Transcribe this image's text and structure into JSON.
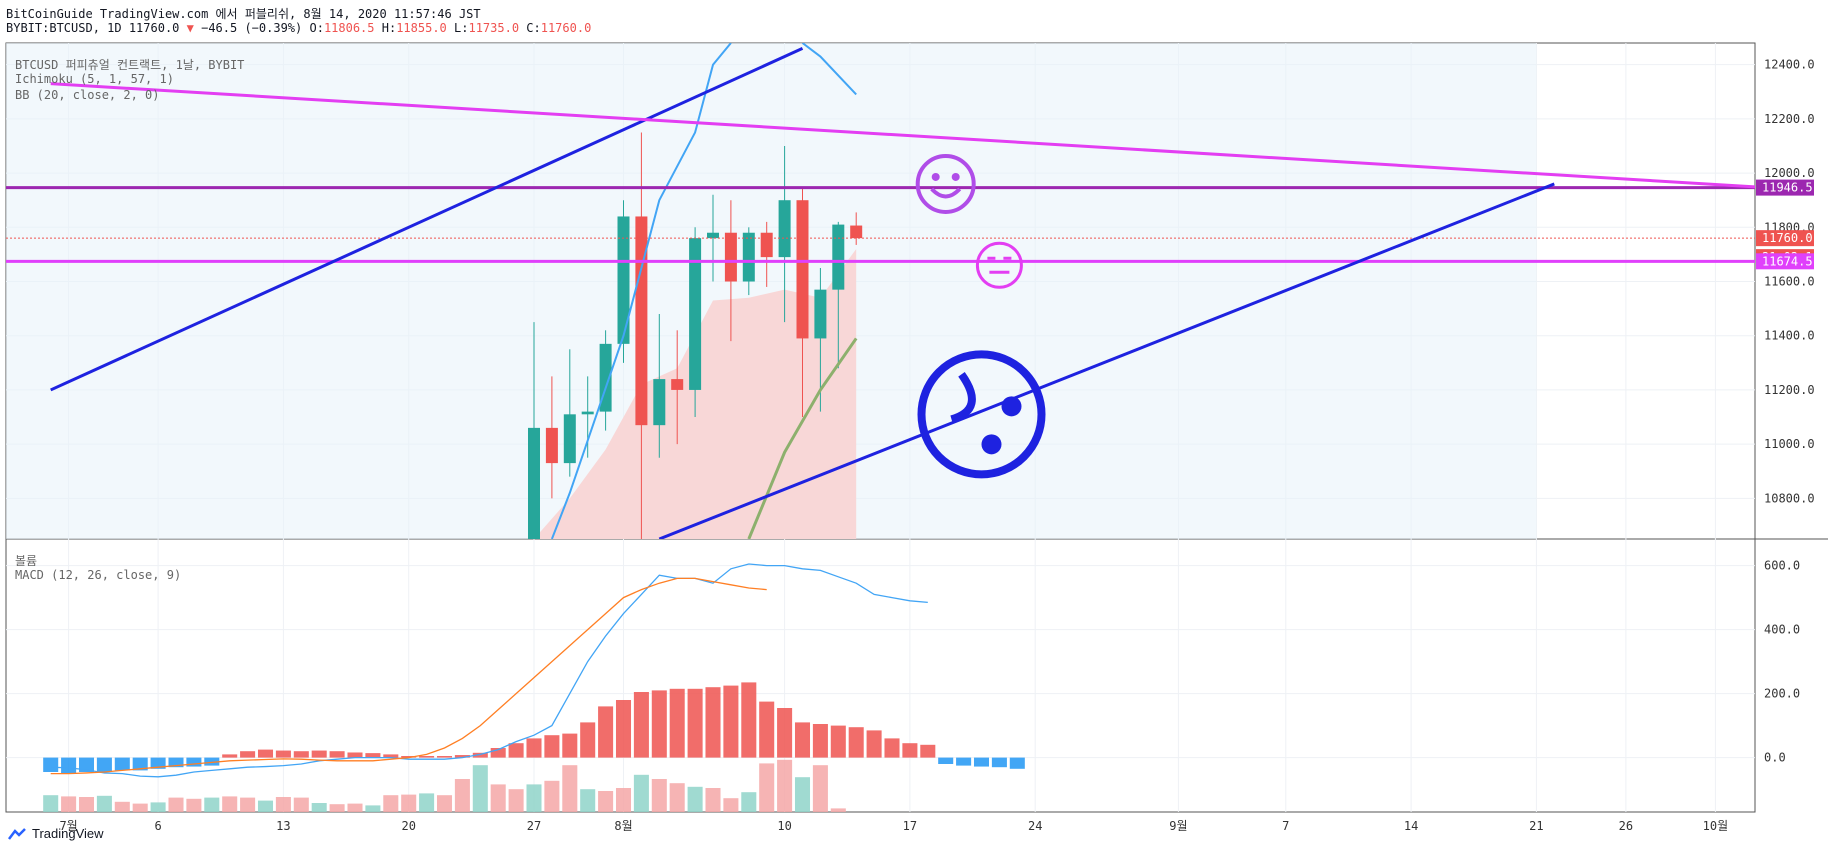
{
  "header": {
    "line1": "BitCoinGuide TradingView.com 에서 퍼블리쉬, 8월 14, 2020 11:57:46 JST",
    "symbol": "BYBIT:BTCUSD, 1D 11760.0",
    "change": "−46.5 (−0.39%)",
    "o_label": "O:",
    "o_value": "11806.5",
    "h_label": "H:",
    "h_value": "11855.0",
    "l_label": "L:",
    "l_value": "11735.0",
    "c_label": "C:",
    "c_value": "11760.0"
  },
  "legend": {
    "title": "BTCUSD 퍼피츄얼 컨트랙트, 1날, BYBIT",
    "ichimoku": "Ichimoku (5, 1, 57, 1)",
    "bb": "BB (20, close, 2, 0)",
    "volume": "볼륨",
    "macd": "MACD (12, 26, close, 9)"
  },
  "footer": {
    "brand": "TradingView"
  },
  "chart_data": [
    {
      "type": "candlestick",
      "title": "BTCUSD 퍼피츄얼 컨트랙트, 1날, BYBIT",
      "ylim": [
        10650,
        12480
      ],
      "y_ticks": [
        "12400.0",
        "12200.0",
        "12000.0",
        "11800.0",
        "11600.0",
        "11400.0",
        "11200.0",
        "11000.0",
        "10800.0"
      ],
      "x_ticks": [
        "7월",
        "6",
        "13",
        "20",
        "27",
        "8월",
        "10",
        "17",
        "24",
        "9월",
        "7",
        "14",
        "21",
        "26",
        "10월"
      ],
      "price_labels": [
        {
          "text": "11946.5",
          "value": 11946.5,
          "color": "#9c27b0"
        },
        {
          "text": "11760.0",
          "value": 11760,
          "color": "#ef5350"
        },
        {
          "text": "21:02:14",
          "value": 11690,
          "color": "#ef5350"
        },
        {
          "text": "11674.5",
          "value": 11674.5,
          "color": "#e040fb"
        }
      ],
      "candles": [
        {
          "date": "2020-07-27",
          "o": 10650,
          "h": 11450,
          "l": 10650,
          "c": 11060
        },
        {
          "date": "2020-07-28",
          "o": 11060,
          "h": 11250,
          "l": 10800,
          "c": 10930
        },
        {
          "date": "2020-07-29",
          "o": 10930,
          "h": 11350,
          "l": 10880,
          "c": 11110
        },
        {
          "date": "2020-07-30",
          "o": 11110,
          "h": 11250,
          "l": 10950,
          "c": 11120
        },
        {
          "date": "2020-07-31",
          "o": 11120,
          "h": 11420,
          "l": 11050,
          "c": 11370
        },
        {
          "date": "2020-08-01",
          "o": 11370,
          "h": 11900,
          "l": 11300,
          "c": 11840
        },
        {
          "date": "2020-08-02",
          "o": 11840,
          "h": 12150,
          "l": 10650,
          "c": 11070
        },
        {
          "date": "2020-08-03",
          "o": 11070,
          "h": 11480,
          "l": 10950,
          "c": 11240
        },
        {
          "date": "2020-08-04",
          "o": 11240,
          "h": 11420,
          "l": 11000,
          "c": 11200
        },
        {
          "date": "2020-08-05",
          "o": 11200,
          "h": 11800,
          "l": 11100,
          "c": 11760
        },
        {
          "date": "2020-08-06",
          "o": 11760,
          "h": 11920,
          "l": 11600,
          "c": 11780
        },
        {
          "date": "2020-08-07",
          "o": 11780,
          "h": 11900,
          "l": 11380,
          "c": 11600
        },
        {
          "date": "2020-08-08",
          "o": 11600,
          "h": 11800,
          "l": 11550,
          "c": 11780
        },
        {
          "date": "2020-08-09",
          "o": 11780,
          "h": 11820,
          "l": 11580,
          "c": 11690
        },
        {
          "date": "2020-08-10",
          "o": 11690,
          "h": 12100,
          "l": 11450,
          "c": 11900
        },
        {
          "date": "2020-08-11",
          "o": 11900,
          "h": 11950,
          "l": 11100,
          "c": 11390
        },
        {
          "date": "2020-08-12",
          "o": 11390,
          "h": 11650,
          "l": 11120,
          "c": 11570
        },
        {
          "date": "2020-08-13",
          "o": 11570,
          "h": 11820,
          "l": 11280,
          "c": 11810
        },
        {
          "date": "2020-08-14",
          "o": 11806.5,
          "h": 11855,
          "l": 11735,
          "c": 11760
        }
      ],
      "horizontal_lines": [
        {
          "value": 11946.5,
          "color": "#9c27b0"
        },
        {
          "value": 11674.5,
          "color": "#e040fb"
        }
      ],
      "trend_lines": [
        {
          "color": "#1e22e0",
          "from": {
            "date": "2020-06-30",
            "value": 11200
          },
          "to": {
            "date": "2020-08-11",
            "value": 12460
          }
        },
        {
          "color": "#1e22e0",
          "from": {
            "date": "2020-08-03",
            "value": 10650
          },
          "to": {
            "date": "2020-09-22",
            "value": 11960
          }
        },
        {
          "color": "#e33ef2",
          "from": {
            "date": "2020-06-30",
            "value": 12330
          },
          "to": {
            "date": "2020-10-13",
            "value": 11910
          }
        }
      ],
      "series": [
        {
          "name": "",
          "color": "#42a5f5",
          "values": [
            [
              "2020-07-28",
              10650
            ],
            [
              "2020-07-29",
              10820
            ],
            [
              "2020-08-01",
              11400
            ],
            [
              "2020-08-03",
              11900
            ],
            [
              "2020-08-05",
              12150
            ],
            [
              "2020-08-06",
              12400
            ],
            [
              "2020-08-07",
              12480
            ]
          ]
        },
        {
          "name": "",
          "color": "#42a5f5",
          "values": [
            [
              "2020-08-11",
              12480
            ],
            [
              "2020-08-12",
              12430
            ],
            [
              "2020-08-14",
              12290
            ]
          ]
        },
        {
          "name": "",
          "color": "#8db06d",
          "values": [
            [
              "2020-08-08",
              10650
            ],
            [
              "2020-08-10",
              10970
            ],
            [
              "2020-08-12",
              11200
            ],
            [
              "2020-08-14",
              11390
            ]
          ]
        }
      ],
      "bb_fill": {
        "color": "#f8d7d7",
        "lower": [
          [
            "2020-07-27",
            10650
          ],
          [
            "2020-07-29",
            10800
          ],
          [
            "2020-07-31",
            10980
          ],
          [
            "2020-08-02",
            11220
          ],
          [
            "2020-08-04",
            11280
          ],
          [
            "2020-08-06",
            11530
          ],
          [
            "2020-08-08",
            11540
          ],
          [
            "2020-08-10",
            11570
          ],
          [
            "2020-08-12",
            11540
          ],
          [
            "2020-08-14",
            11720
          ]
        ]
      },
      "emojis": [
        {
          "kind": "smile",
          "date": "2020-08-19",
          "value": 11960,
          "color": "#b04de8"
        },
        {
          "kind": "neutral",
          "date": "2020-08-22",
          "value": 11660,
          "color": "#e33ef2"
        },
        {
          "kind": "sad",
          "date": "2020-08-21",
          "value": 11110,
          "color": "#1e22e0"
        }
      ]
    },
    {
      "type": "bar",
      "title": "볼륨",
      "relative_values": [
        0.28,
        0.26,
        0.25,
        0.27,
        0.17,
        0.14,
        0.16,
        0.24,
        0.22,
        0.24,
        0.26,
        0.24,
        0.19,
        0.25,
        0.24,
        0.15,
        0.13,
        0.14,
        0.11,
        0.28,
        0.29,
        0.31,
        0.28,
        0.55,
        0.78,
        0.46,
        0.38,
        0.46,
        0.52,
        0.78,
        0.38,
        0.35,
        0.4,
        0.62,
        0.55,
        0.48,
        0.42,
        0.4,
        0.23,
        0.33,
        0.81,
        0.87,
        0.58,
        0.78,
        0.06
      ],
      "colors_up": "#8fd3c9",
      "colors_down": "#f5a7a7"
    },
    {
      "type": "macd",
      "title": "MACD (12, 26, close, 9)",
      "ylim": [
        -170,
        680
      ],
      "y_ticks": [
        "600.0",
        "400.0",
        "200.0",
        "0.0"
      ],
      "histogram": [
        -45,
        -50,
        -45,
        -45,
        -40,
        -40,
        -35,
        -30,
        -28,
        -25,
        10,
        20,
        25,
        22,
        20,
        22,
        20,
        16,
        14,
        10,
        5,
        5,
        5,
        8,
        15,
        30,
        45,
        60,
        70,
        75,
        110,
        160,
        180,
        205,
        210,
        215,
        215,
        220,
        225,
        235,
        175,
        155,
        110,
        105,
        100,
        95,
        85,
        60,
        45,
        40,
        -20,
        -25,
        -28,
        -30,
        -35
      ],
      "macd_line": [
        -30,
        -32,
        -38,
        -48,
        -50,
        -58,
        -60,
        -55,
        -45,
        -40,
        -35,
        -30,
        -28,
        -25,
        -20,
        -10,
        -5,
        0,
        0,
        0,
        -5,
        -5,
        -5,
        0,
        10,
        25,
        50,
        70,
        100,
        200,
        300,
        380,
        450,
        510,
        570,
        560,
        560,
        545,
        590,
        605,
        600,
        600,
        590,
        585,
        565,
        545,
        510,
        500,
        490,
        485
      ],
      "signal_line": [
        -50,
        -50,
        -48,
        -45,
        -40,
        -35,
        -30,
        -25,
        -20,
        -15,
        -10,
        -8,
        -6,
        -4,
        -5,
        -8,
        -10,
        -10,
        -10,
        -5,
        0,
        10,
        30,
        60,
        100,
        150,
        200,
        250,
        300,
        350,
        400,
        450,
        500,
        525,
        545,
        560,
        560,
        550,
        540,
        530,
        525
      ],
      "macd_color": "#42a5f5",
      "signal_color": "#ff7f24"
    }
  ]
}
